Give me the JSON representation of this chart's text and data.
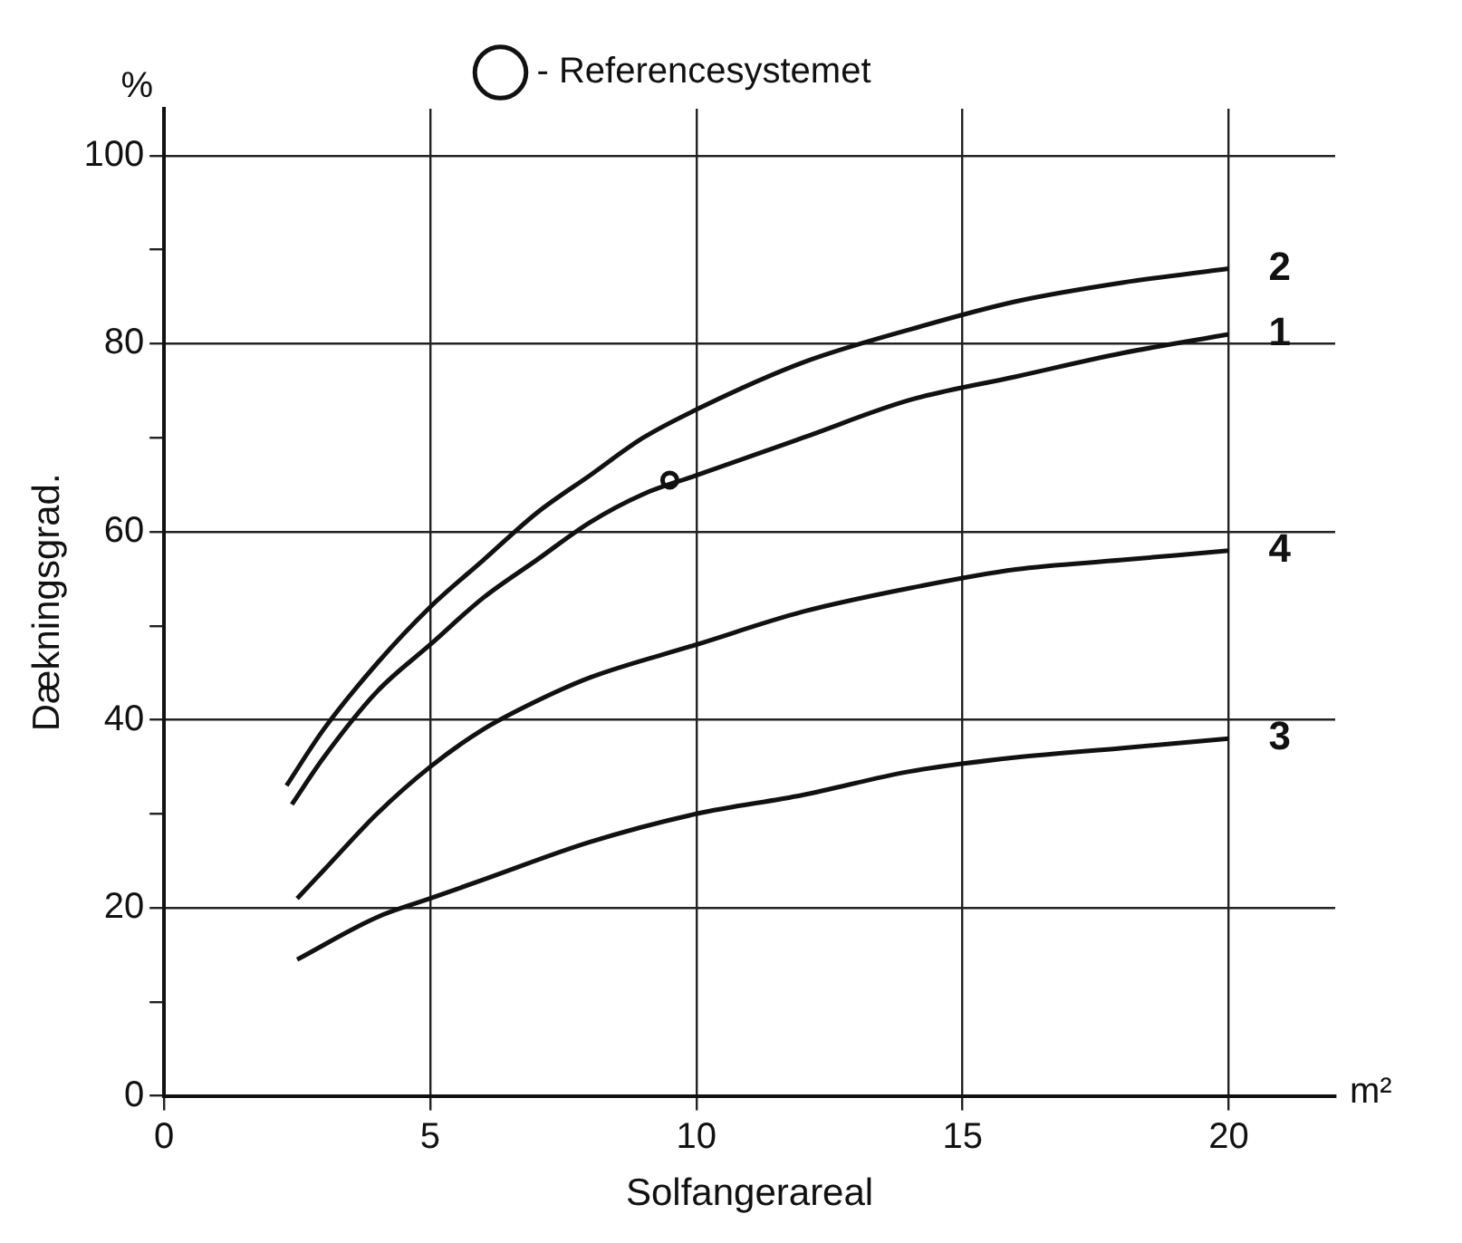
{
  "chart_data": {
    "type": "line",
    "xlabel": "Solfangerareal",
    "ylabel": "Dækningsgrad.",
    "annotations": [
      "%",
      "m²"
    ],
    "xlim": [
      0,
      22
    ],
    "xticks": [
      0,
      5,
      10,
      15,
      20
    ],
    "ylim": [
      0,
      105
    ],
    "yticks": [
      0,
      {
        "value": 10,
        "label": null
      },
      20,
      {
        "value": 30,
        "label": null
      },
      40,
      {
        "value": 50,
        "label": null
      },
      60,
      {
        "value": 70,
        "label": null
      },
      80,
      {
        "value": 90,
        "label": null
      },
      100
    ],
    "grid": true,
    "legend": "top",
    "marker": "none",
    "line_style": "solid",
    "series": [
      {
        "name": "2",
        "color": "#111111",
        "x": [
          2.3,
          3,
          4,
          5,
          6,
          7,
          8,
          9,
          10,
          12,
          14,
          16,
          18,
          20
        ],
        "values": [
          33,
          39,
          46,
          52,
          57,
          62,
          66,
          70,
          73,
          78,
          81.5,
          84.5,
          86.5,
          88
        ]
      },
      {
        "name": "1",
        "color": "#111111",
        "x": [
          2.4,
          3,
          4,
          5,
          6,
          7,
          8,
          9,
          10,
          12,
          14,
          16,
          18,
          20
        ],
        "values": [
          31,
          36,
          43,
          48,
          53,
          57,
          61,
          64,
          66,
          70,
          74,
          76.5,
          79,
          81
        ]
      },
      {
        "name": "4",
        "color": "#111111",
        "x": [
          2.5,
          3,
          4,
          5,
          6,
          7,
          8,
          10,
          12,
          14,
          16,
          18,
          20
        ],
        "values": [
          21,
          24,
          30,
          35,
          39,
          42,
          44.5,
          48,
          51.5,
          54,
          56,
          57,
          58
        ]
      },
      {
        "name": "3",
        "color": "#111111",
        "x": [
          2.5,
          4,
          5,
          6,
          8,
          10,
          12,
          14,
          16,
          18,
          20
        ],
        "values": [
          14.5,
          19,
          21,
          23,
          27,
          30,
          32,
          34.5,
          36,
          37,
          38
        ]
      },
      {
        "type": "scatter",
        "name": "- Referencesystemet",
        "color": "#111111",
        "x": [
          9.5
        ],
        "values": [
          65.5
        ],
        "marker": "circle"
      }
    ]
  }
}
